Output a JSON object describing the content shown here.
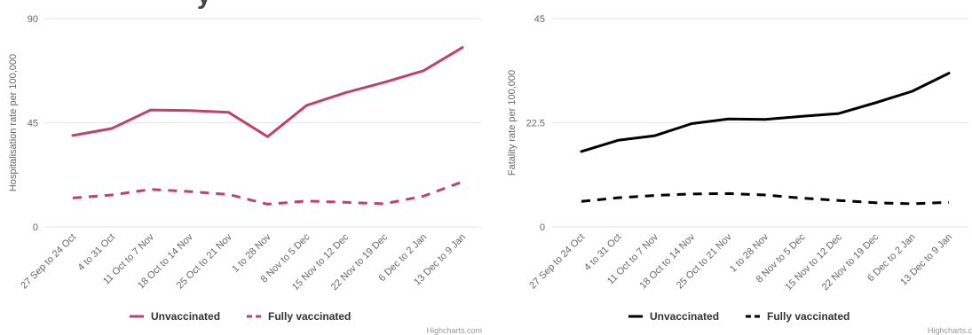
{
  "chart_data": [
    {
      "type": "line",
      "ylabel": "Hospitalisation rate per 100,000",
      "ylim": [
        0,
        90
      ],
      "yticks": [
        "0",
        "45",
        "90"
      ],
      "categories": [
        "27 Sep to 24 Oct",
        "4 to 31 Oct",
        "11 Oct to 7 Nov",
        "18 Oct to 14 Nov",
        "25 Oct to 21 Nov",
        "1 to 28 Nov",
        "8 Nov to 5 Dec",
        "15 Nov to 12 Dec",
        "22 Nov to 19 Dec",
        "6 Dec to 2 Jan",
        "13 Dec to 9 Jan"
      ],
      "series": [
        {
          "name": "Unvaccinated",
          "color": "#c0426a",
          "dash": false,
          "values": [
            39.5,
            42.5,
            50.5,
            50.3,
            49.5,
            39,
            52.5,
            58,
            62.5,
            67.5,
            77.5
          ]
        },
        {
          "name": "Fully vaccinated",
          "color": "#c0426a",
          "dash": true,
          "values": [
            12.5,
            13.8,
            16.2,
            15.3,
            14,
            9.8,
            11.2,
            10.6,
            10,
            13.3,
            19.5
          ]
        }
      ],
      "credit": "Highcharts.com"
    },
    {
      "type": "line",
      "ylabel": "Fatality rate per 100,000",
      "ylim": [
        0,
        45
      ],
      "yticks": [
        "0",
        "22.5",
        "45"
      ],
      "categories": [
        "27 Sep to 24 Oct",
        "4 to 31 Oct",
        "11 Oct to 7 Nov",
        "18 Oct to 14 Nov",
        "25 Oct to 21 Nov",
        "1 to 28 Nov",
        "8 Nov to 5 Dec",
        "15 Nov to 12 Dec",
        "22 Nov to 19 Dec",
        "6 Dec to 2 Jan",
        "13 Dec to 9 Jan"
      ],
      "series": [
        {
          "name": "Unvaccinated",
          "color": "#000000",
          "dash": false,
          "values": [
            16.3,
            18.7,
            19.7,
            22.3,
            23.3,
            23.2,
            23.9,
            24.5,
            26.8,
            29.3,
            33.2
          ]
        },
        {
          "name": "Fully vaccinated",
          "color": "#000000",
          "dash": true,
          "values": [
            5.5,
            6.3,
            6.8,
            7.1,
            7.2,
            6.9,
            6.2,
            5.7,
            5.2,
            5,
            5.3
          ]
        }
      ],
      "credit": "Highcharts.c"
    }
  ],
  "title_fragment": "y"
}
